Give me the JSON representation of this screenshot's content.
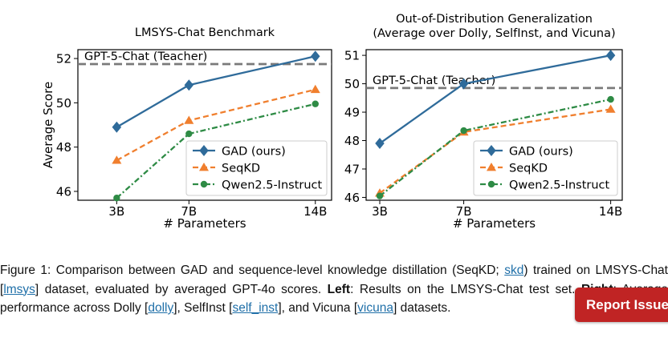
{
  "chart_data": [
    {
      "type": "line",
      "title": "LMSYS-Chat Benchmark",
      "xlabel": "# Parameters",
      "ylabel": "Average Score",
      "categories": [
        "3B",
        "7B",
        "14B"
      ],
      "x": [
        3,
        7,
        14
      ],
      "ylim": [
        45.6,
        52.4
      ],
      "yticks": [
        46,
        48,
        50,
        52
      ],
      "reference": {
        "label": "GPT-5-Chat (Teacher)",
        "value": 51.75
      },
      "legend_position": "lower right",
      "series": [
        {
          "name": "GAD (ours)",
          "values": [
            48.9,
            50.8,
            52.1
          ],
          "color": "#2f6b9a",
          "marker": "diamond",
          "dash": "solid"
        },
        {
          "name": "SeqKD",
          "values": [
            47.4,
            49.2,
            50.6
          ],
          "color": "#f07f2e",
          "marker": "triangle",
          "dash": "dashed"
        },
        {
          "name": "Qwen2.5-Instruct",
          "values": [
            45.7,
            48.6,
            49.95
          ],
          "color": "#2e8b45",
          "marker": "circle",
          "dash": "dashdot"
        }
      ]
    },
    {
      "type": "line",
      "title": "Out-of-Distribution Generalization\n(Average over Dolly, SelfInst, and Vicuna)",
      "xlabel": "# Parameters",
      "ylabel": "",
      "categories": [
        "3B",
        "7B",
        "14B"
      ],
      "x": [
        3,
        7,
        14
      ],
      "ylim": [
        45.9,
        51.2
      ],
      "yticks": [
        46,
        47,
        48,
        49,
        50,
        51
      ],
      "reference": {
        "label": "GPT-5-Chat (Teacher)",
        "value": 49.85
      },
      "legend_position": "lower right",
      "series": [
        {
          "name": "GAD (ours)",
          "values": [
            47.9,
            50.0,
            51.0
          ],
          "color": "#2f6b9a",
          "marker": "diamond",
          "dash": "solid"
        },
        {
          "name": "SeqKD",
          "values": [
            46.15,
            48.3,
            49.1
          ],
          "color": "#f07f2e",
          "marker": "triangle",
          "dash": "dashed"
        },
        {
          "name": "Qwen2.5-Instruct",
          "values": [
            46.05,
            48.35,
            49.45
          ],
          "color": "#2e8b45",
          "marker": "circle",
          "dash": "dashdot"
        }
      ]
    }
  ],
  "caption": {
    "p1": "Figure 1: Comparison between GAD and sequence-level knowledge distillation (SeqKD; ",
    "ref_skd": "skd",
    "p2": ") trained on LMSYS-Chat [",
    "ref_lmsys": "lmsys",
    "p3": "] dataset, evaluated by averaged GPT-4o scores. ",
    "left_label": "Left",
    "p4": ": Results on the LMSYS-Chat test set. ",
    "right_label": "Right",
    "p5": ": Average performance across Dolly [",
    "ref_dolly": "dolly",
    "p6": "], SelfInst [",
    "ref_self_inst": "self_inst",
    "p7": "], and Vicuna [",
    "ref_vicuna": "vicuna",
    "p8": "] datasets."
  },
  "report_button": {
    "label": "Report Issue"
  }
}
